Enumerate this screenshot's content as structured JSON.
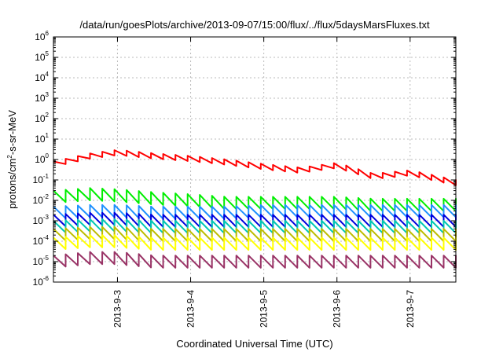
{
  "chart_data": {
    "type": "line",
    "title": "/data/run/goesPlots/archive/2013-09-07/15:00/flux/../flux/5daysMarsFluxes.txt",
    "xlabel": "Coordinated Universal Time (UTC)",
    "ylabel_parts": [
      "protons/cm",
      "2",
      "-s-sr-MeV"
    ],
    "yscale": "log",
    "ylim": [
      1e-06,
      1000000.0
    ],
    "xlim_days": [
      "2013-09-02 03:00",
      "2013-09-07 15:00"
    ],
    "grid": true,
    "xticks": [
      "2013-9-3",
      "2013-9-4",
      "2013-9-5",
      "2013-9-6",
      "2013-9-7"
    ],
    "yticks": [
      {
        "base": "10",
        "exp": "-6"
      },
      {
        "base": "10",
        "exp": "-5"
      },
      {
        "base": "10",
        "exp": "-4"
      },
      {
        "base": "10",
        "exp": "-3"
      },
      {
        "base": "10",
        "exp": "-2"
      },
      {
        "base": "10",
        "exp": "-1"
      },
      {
        "base": "10",
        "exp": "0"
      },
      {
        "base": "10",
        "exp": "1"
      },
      {
        "base": "10",
        "exp": "2"
      },
      {
        "base": "10",
        "exp": "3"
      },
      {
        "base": "10",
        "exp": "4"
      },
      {
        "base": "10",
        "exp": "5"
      },
      {
        "base": "10",
        "exp": "6"
      }
    ],
    "x": [
      "2013-09-02 03:00",
      "2013-09-02 15:00",
      "2013-09-03 00:00",
      "2013-09-03 12:00",
      "2013-09-04 00:00",
      "2013-09-04 12:00",
      "2013-09-05 00:00",
      "2013-09-05 12:00",
      "2013-09-06 00:00",
      "2013-09-06 12:00",
      "2013-09-07 00:00",
      "2013-09-07 15:00"
    ],
    "series": [
      {
        "color": "#ff0000",
        "values": [
          0.8,
          2.0,
          3.0,
          2.0,
          1.5,
          1.0,
          0.6,
          0.4,
          0.7,
          0.2,
          0.3,
          0.1
        ]
      },
      {
        "color": "#00ee00",
        "values": [
          0.03,
          0.04,
          0.035,
          0.025,
          0.02,
          0.015,
          0.015,
          0.015,
          0.015,
          0.012,
          0.012,
          0.012
        ]
      },
      {
        "color": "#1e90ff",
        "values": [
          0.005,
          0.006,
          0.006,
          0.005,
          0.005,
          0.005,
          0.006,
          0.006,
          0.006,
          0.006,
          0.006,
          0.006
        ]
      },
      {
        "color": "#0000dd",
        "values": [
          0.002,
          0.0025,
          0.0025,
          0.002,
          0.002,
          0.002,
          0.002,
          0.002,
          0.002,
          0.002,
          0.002,
          0.002
        ]
      },
      {
        "color": "#00c8b4",
        "values": [
          0.001,
          0.0012,
          0.0012,
          0.001,
          0.001,
          0.001,
          0.001,
          0.001,
          0.001,
          0.001,
          0.001,
          0.001
        ]
      },
      {
        "color": "#bdbd00",
        "values": [
          0.0004,
          0.0005,
          0.0005,
          0.0004,
          0.0004,
          0.0004,
          0.0004,
          0.0004,
          0.0004,
          0.0004,
          0.0004,
          0.0004
        ]
      },
      {
        "color": "#ffff00",
        "values": [
          0.00015,
          0.0002,
          0.0002,
          0.00015,
          0.00015,
          0.00015,
          0.00015,
          0.00015,
          0.00015,
          0.00015,
          0.00015,
          0.00015
        ]
      },
      {
        "color": "#993366",
        "values": [
          2e-05,
          3e-05,
          3e-05,
          2e-05,
          2e-05,
          2e-05,
          2e-05,
          2e-05,
          2e-05,
          2e-05,
          2e-05,
          2e-05
        ]
      }
    ],
    "sawtooth": {
      "period_hours": 4,
      "drop_factor": 0.25
    },
    "red_sawtooth": {
      "period_hours": 4,
      "drop_factor": 0.55
    }
  }
}
